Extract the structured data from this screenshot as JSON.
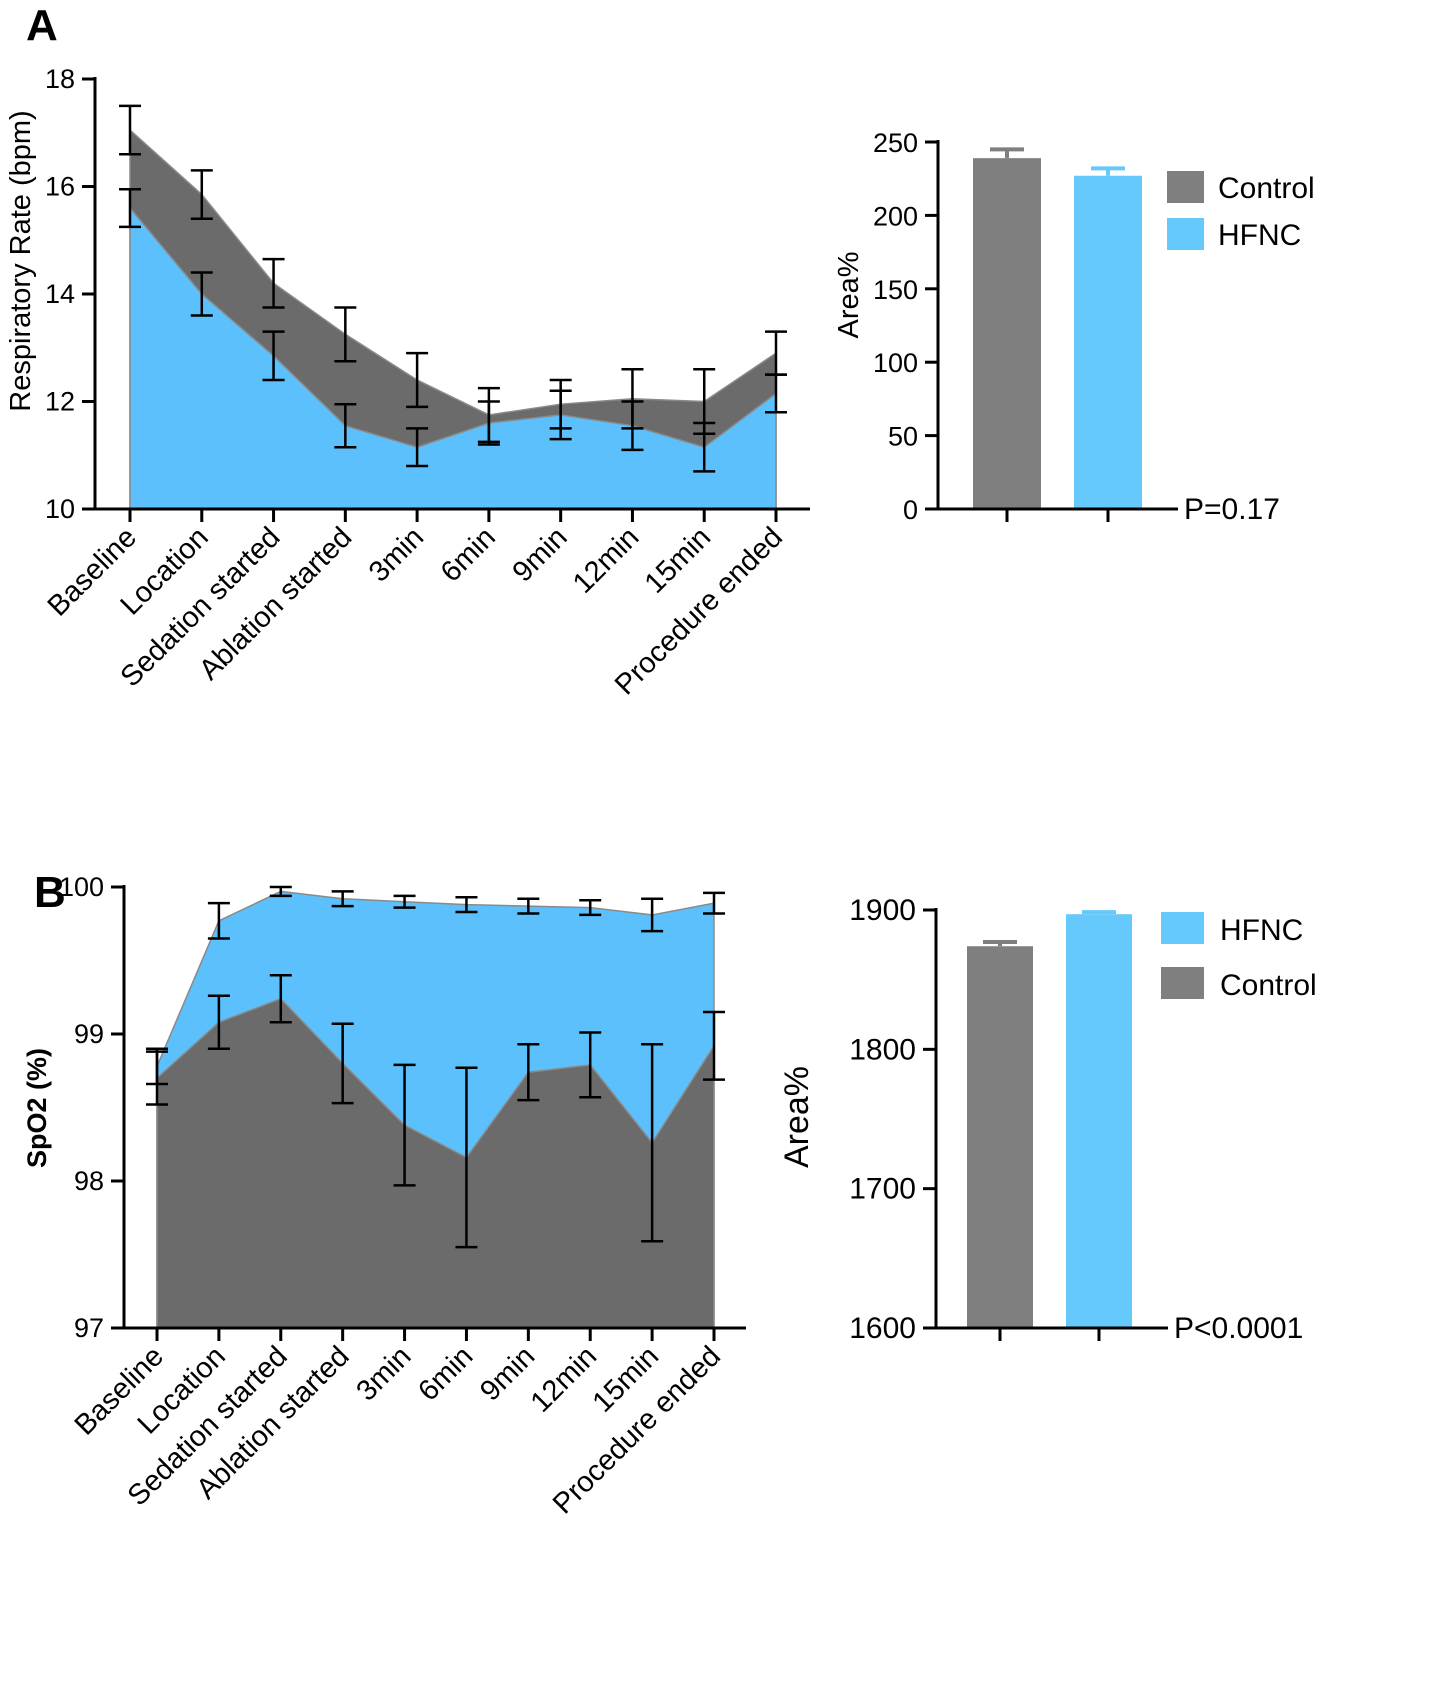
{
  "colors": {
    "control": "#6b6b6b",
    "control_bar": "#7f7f7f",
    "hfnc": "#5bc0fb",
    "hfnc_bar": "#66c9fc",
    "axis": "#000000"
  },
  "panels": {
    "a": {
      "label": "A"
    },
    "b": {
      "label": "B"
    }
  },
  "chart_data": [
    {
      "id": "a_area",
      "type": "area",
      "title": "",
      "xlabel": "",
      "ylabel": "Respiratory Rate (bpm)",
      "ylim": [
        10,
        18
      ],
      "yticks": [
        10,
        12,
        14,
        16,
        18
      ],
      "categories": [
        "Baseline",
        "Location",
        "Sedation started",
        "Ablation started",
        "3min",
        "6min",
        "9min",
        "12min",
        "15min",
        "Procedure ended"
      ],
      "series": [
        {
          "name": "Control",
          "color": "#6b6b6b",
          "values": [
            17.05,
            15.85,
            14.2,
            13.25,
            12.4,
            11.75,
            11.95,
            12.05,
            12.0,
            12.9
          ],
          "errors": [
            0.45,
            0.45,
            0.45,
            0.5,
            0.5,
            0.5,
            0.45,
            0.55,
            0.6,
            0.4
          ]
        },
        {
          "name": "HFNC",
          "color": "#5bc0fb",
          "values": [
            15.6,
            14.0,
            12.85,
            11.55,
            11.15,
            11.6,
            11.75,
            11.55,
            11.15,
            12.15
          ],
          "errors": [
            0.35,
            0.4,
            0.45,
            0.4,
            0.35,
            0.4,
            0.45,
            0.45,
            0.45,
            0.35
          ]
        }
      ]
    },
    {
      "id": "a_bar",
      "type": "bar",
      "ylabel": "Area%",
      "ylim": [
        0,
        250
      ],
      "yticks": [
        0,
        50,
        100,
        150,
        200,
        250
      ],
      "categories": [
        "Control",
        "HFNC"
      ],
      "values": [
        239,
        227
      ],
      "errors": [
        6,
        5
      ],
      "legend": [
        "Control",
        "HFNC"
      ],
      "annotation": "P=0.17"
    },
    {
      "id": "b_area",
      "type": "area",
      "title": "",
      "xlabel": "",
      "ylabel": "SpO2 (%)",
      "ylim": [
        97,
        100
      ],
      "yticks": [
        97,
        98,
        99,
        100
      ],
      "categories": [
        "Baseline",
        "Location",
        "Sedation started",
        "Ablation started",
        "3min",
        "6min",
        "9min",
        "12min",
        "15min",
        "Procedure ended"
      ],
      "series": [
        {
          "name": "HFNC",
          "color": "#5bc0fb",
          "values": [
            98.78,
            99.77,
            99.97,
            99.92,
            99.9,
            99.88,
            99.87,
            99.86,
            99.81,
            99.89
          ],
          "errors": [
            0.12,
            0.12,
            0.03,
            0.05,
            0.04,
            0.05,
            0.05,
            0.05,
            0.11,
            0.07
          ]
        },
        {
          "name": "Control",
          "color": "#6b6b6b",
          "values": [
            98.7,
            99.08,
            99.24,
            98.8,
            98.38,
            98.16,
            98.74,
            98.79,
            98.26,
            98.92
          ],
          "errors": [
            0.18,
            0.18,
            0.16,
            0.27,
            0.41,
            0.61,
            0.19,
            0.22,
            0.67,
            0.23
          ]
        }
      ]
    },
    {
      "id": "b_bar",
      "type": "bar",
      "ylabel": "Area%",
      "ylim": [
        1600,
        1900
      ],
      "yticks": [
        1600,
        1700,
        1800,
        1900
      ],
      "categories": [
        "Control",
        "HFNC"
      ],
      "values": [
        1874,
        1897
      ],
      "errors": [
        3,
        1.5
      ],
      "legend": [
        "HFNC",
        "Control"
      ],
      "annotation": "P<0.0001"
    }
  ]
}
